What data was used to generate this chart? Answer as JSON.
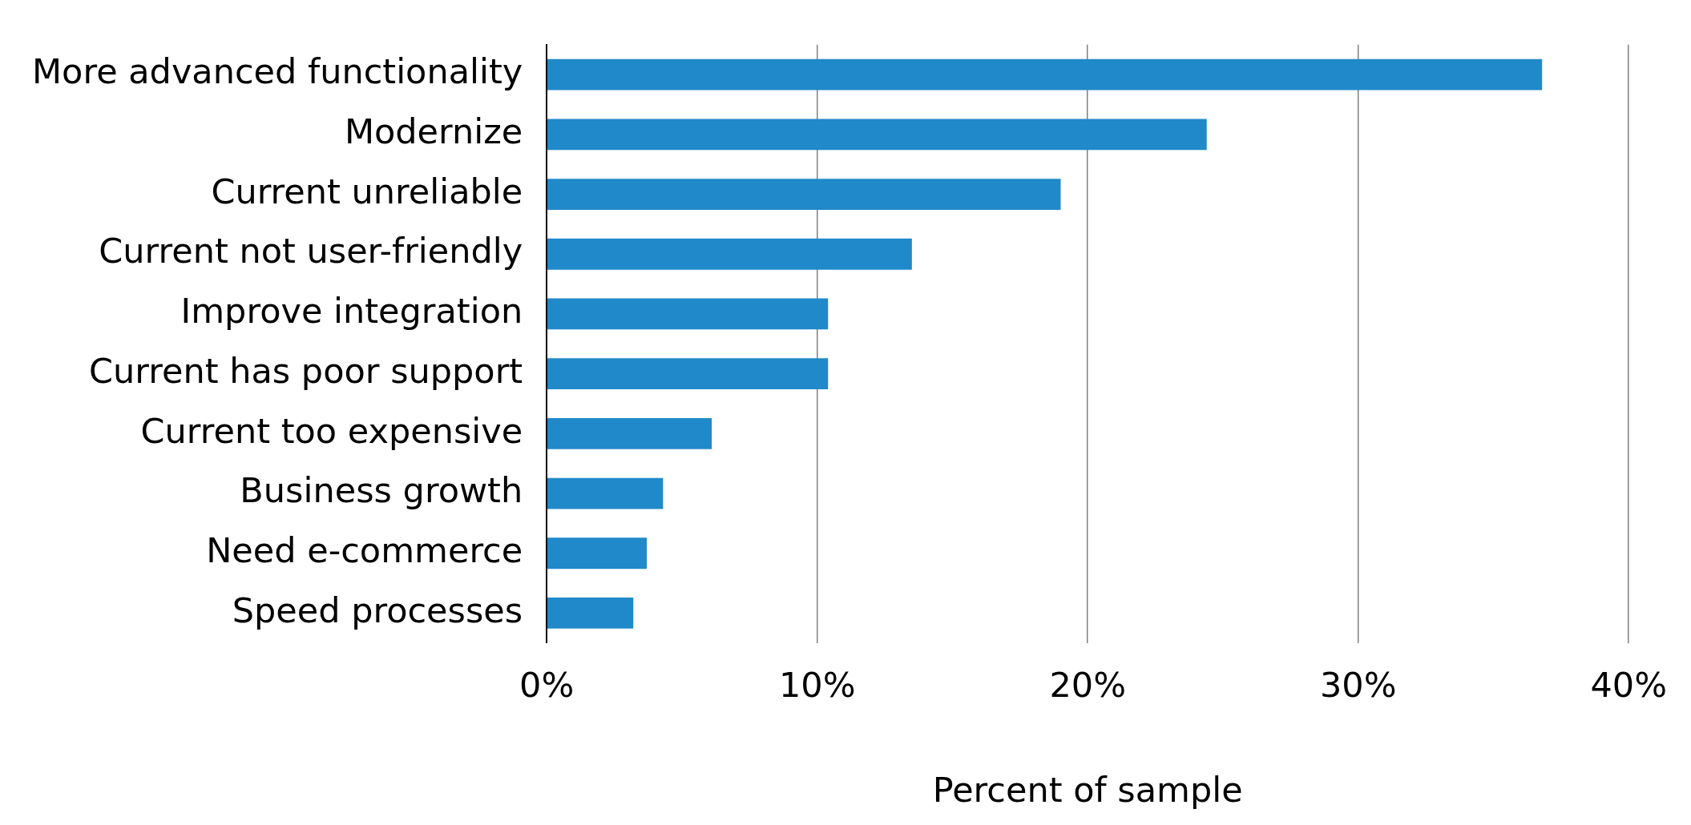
{
  "chart_data": {
    "type": "bar",
    "orientation": "horizontal",
    "xlabel": "Percent of sample",
    "categories": [
      "More advanced functionality",
      "Modernize",
      "Current unreliable",
      "Current not user-friendly",
      "Improve integration",
      "Current has poor support",
      "Current too expensive",
      "Business growth",
      "Need e-commerce",
      "Speed processes"
    ],
    "values": [
      36.8,
      24.4,
      19.0,
      13.5,
      10.4,
      10.4,
      6.1,
      4.3,
      3.7,
      3.2
    ],
    "color": "#2089c9",
    "xlim": [
      0,
      40
    ],
    "xticks": [
      {
        "value": 0,
        "label": "0%"
      },
      {
        "value": 10,
        "label": "10%"
      },
      {
        "value": 20,
        "label": "20%"
      },
      {
        "value": 30,
        "label": "30%"
      },
      {
        "value": 40,
        "label": "40%"
      }
    ],
    "grid": "x",
    "legend": false
  }
}
